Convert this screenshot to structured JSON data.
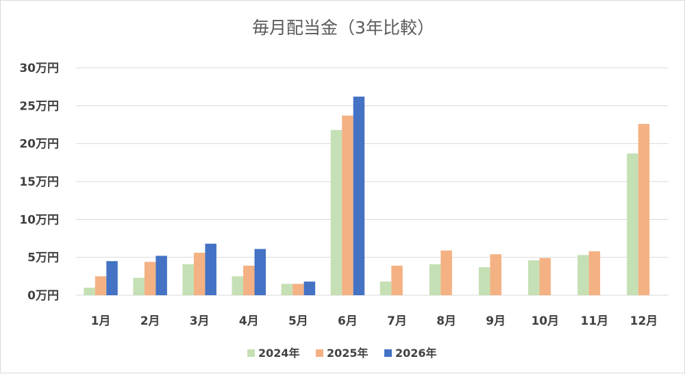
{
  "chart_data": {
    "type": "bar",
    "title": "毎月配当金（3年比較）",
    "categories": [
      "1月",
      "2月",
      "3月",
      "4月",
      "5月",
      "6月",
      "7月",
      "8月",
      "9月",
      "10月",
      "11月",
      "12月"
    ],
    "series": [
      {
        "name": "2024年",
        "color": "#c5e0b4",
        "values": [
          1.0,
          2.3,
          4.1,
          2.5,
          1.5,
          21.8,
          1.8,
          4.1,
          3.7,
          4.6,
          5.3,
          18.7
        ]
      },
      {
        "name": "2025年",
        "color": "#f4b183",
        "values": [
          2.5,
          4.4,
          5.6,
          3.9,
          1.5,
          23.7,
          3.9,
          5.9,
          5.4,
          4.9,
          5.8,
          22.6
        ]
      },
      {
        "name": "2026年",
        "color": "#4472c4",
        "values": [
          4.5,
          5.2,
          6.8,
          6.1,
          1.8,
          26.2,
          null,
          null,
          null,
          null,
          null,
          null
        ]
      }
    ],
    "yticks": [
      "0万円",
      "5万円",
      "10万円",
      "15万円",
      "20万円",
      "25万円",
      "30万円"
    ],
    "ylim": [
      0,
      30
    ],
    "ytick_step": 5,
    "grid": true,
    "legend": "bottom"
  }
}
